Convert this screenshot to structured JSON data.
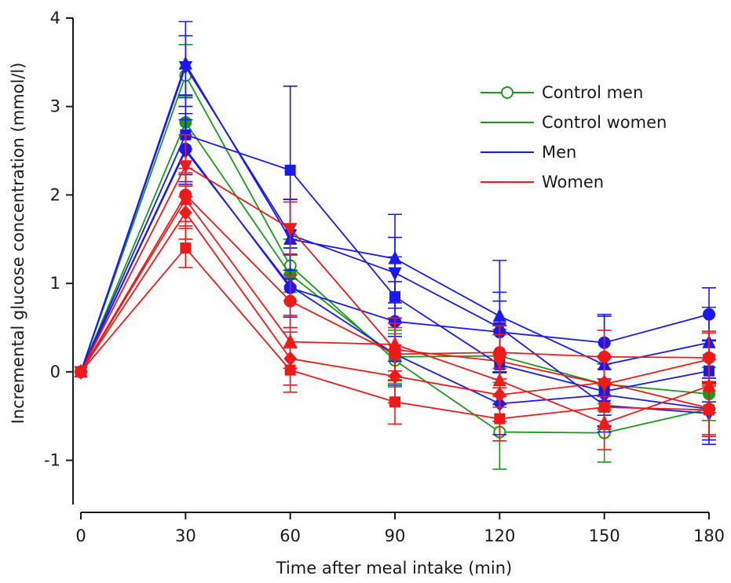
{
  "chart_data": {
    "type": "line",
    "title": "",
    "xlabel": "Time after meal intake (min)",
    "ylabel": "Incremental glucose concentration (mmol/l)",
    "xlim": [
      0,
      180
    ],
    "ylim": [
      -1.5,
      4
    ],
    "x_ticks": [
      "0",
      "30",
      "60",
      "90",
      "120",
      "150",
      "180"
    ],
    "x_tick_values": [
      0,
      30,
      60,
      90,
      120,
      150,
      180
    ],
    "y_ticks": [
      "-1",
      "0",
      "1",
      "2",
      "3",
      "4"
    ],
    "y_tick_values": [
      -1,
      0,
      1,
      2,
      3,
      4
    ],
    "grid": false,
    "legend_position": "top-right",
    "colors": {
      "Control men": "#1a9a1a",
      "Control women": "#1a9a1a",
      "Men": "#1a1aee",
      "Women": "#ee1a1a"
    },
    "legend": [
      {
        "label": "Control men",
        "color": "#1a9a1a",
        "marker": "circle-open"
      },
      {
        "label": "Control women",
        "color": "#1a9a1a",
        "marker": "circle-filled"
      },
      {
        "label": "Men",
        "color": "#1a1aee",
        "marker": "none"
      },
      {
        "label": "Women",
        "color": "#ee1a1a",
        "marker": "none"
      }
    ],
    "x": [
      0,
      30,
      60,
      90,
      120,
      150,
      180
    ],
    "series": [
      {
        "group": "Control men",
        "color": "#1a9a1a",
        "marker": "circle-open",
        "values": [
          0,
          3.35,
          1.2,
          0.13,
          -0.68,
          -0.69,
          -0.42
        ],
        "errors": [
          0,
          0.35,
          0.3,
          0.3,
          0.42,
          0.33,
          0.35
        ]
      },
      {
        "group": "Control women",
        "color": "#1a9a1a",
        "marker": "circle",
        "values": [
          0,
          2.82,
          1.1,
          0.17,
          0.18,
          -0.14,
          -0.25
        ],
        "errors": [
          0,
          0.3,
          0.3,
          0.3,
          0.3,
          0.3,
          0.3
        ]
      },
      {
        "group": "Men",
        "color": "#1a1aee",
        "marker": "circle",
        "values": [
          0,
          2.52,
          0.95,
          0.57,
          0.45,
          0.33,
          0.65
        ],
        "errors": [
          0,
          0.4,
          0.45,
          0.45,
          0.45,
          0.3,
          0.3
        ]
      },
      {
        "group": "Men",
        "color": "#1a1aee",
        "marker": "square",
        "values": [
          0,
          2.68,
          2.28,
          0.85,
          0.08,
          -0.22,
          0.01
        ],
        "errors": [
          0,
          0.45,
          0.95,
          0.45,
          0.45,
          0.4,
          0.35
        ]
      },
      {
        "group": "Men",
        "color": "#1a1aee",
        "marker": "triangle-up",
        "values": [
          0,
          3.48,
          1.5,
          1.28,
          0.63,
          0.08,
          0.33
        ],
        "errors": [
          0,
          0.48,
          0.45,
          0.5,
          0.63,
          0.57,
          0.4
        ]
      },
      {
        "group": "Men",
        "color": "#1a1aee",
        "marker": "triangle-down",
        "values": [
          0,
          3.45,
          1.55,
          1.12,
          0.5,
          -0.38,
          -0.47
        ],
        "errors": [
          0,
          0.35,
          0.4,
          0.4,
          0.3,
          0.3,
          0.35
        ]
      },
      {
        "group": "Men",
        "color": "#1a1aee",
        "marker": "diamond",
        "values": [
          0,
          2.5,
          0.97,
          0.2,
          -0.36,
          -0.26,
          -0.42
        ],
        "errors": [
          0,
          0.35,
          0.35,
          0.35,
          0.35,
          0.35,
          0.35
        ]
      },
      {
        "group": "Women",
        "color": "#ee1a1a",
        "marker": "circle",
        "values": [
          0,
          2.0,
          0.8,
          0.2,
          0.22,
          0.17,
          0.16
        ],
        "errors": [
          0,
          0.3,
          0.3,
          0.3,
          0.3,
          0.3,
          0.3
        ]
      },
      {
        "group": "Women",
        "color": "#ee1a1a",
        "marker": "square",
        "values": [
          0,
          1.4,
          0.02,
          -0.34,
          -0.53,
          -0.4,
          -0.43
        ],
        "errors": [
          0,
          0.22,
          0.25,
          0.25,
          0.25,
          0.25,
          0.3
        ]
      },
      {
        "group": "Women",
        "color": "#ee1a1a",
        "marker": "triangle-up",
        "values": [
          0,
          1.95,
          0.34,
          0.31,
          -0.1,
          -0.58,
          -0.16
        ],
        "errors": [
          0,
          0.3,
          0.3,
          0.3,
          0.3,
          0.3,
          0.3
        ]
      },
      {
        "group": "Women",
        "color": "#ee1a1a",
        "marker": "triangle-down",
        "values": [
          0,
          2.33,
          1.62,
          0.25,
          0.12,
          -0.14,
          0.14
        ],
        "errors": [
          0,
          0.35,
          0.3,
          0.3,
          0.3,
          0.3,
          0.3
        ]
      },
      {
        "group": "Women",
        "color": "#ee1a1a",
        "marker": "diamond",
        "values": [
          0,
          1.8,
          0.15,
          -0.05,
          -0.26,
          -0.12,
          -0.41
        ],
        "errors": [
          0,
          0.3,
          0.3,
          0.3,
          0.3,
          0.3,
          0.3
        ]
      }
    ]
  }
}
